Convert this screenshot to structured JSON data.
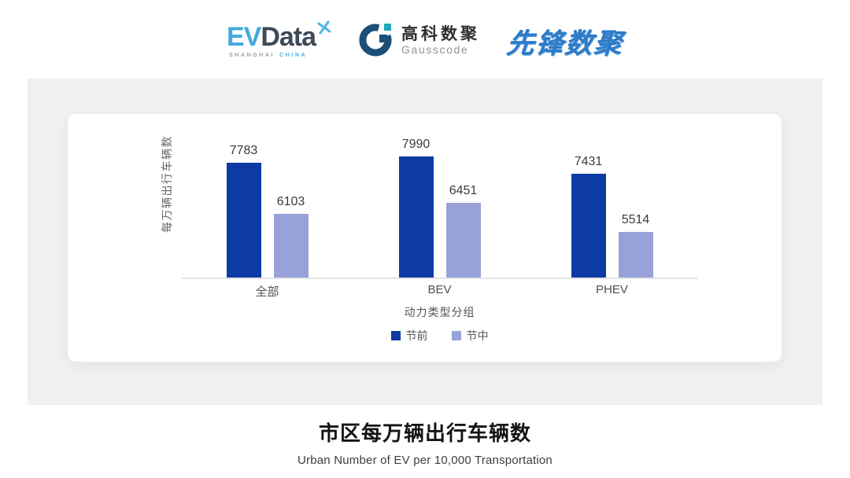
{
  "header": {
    "evdata": {
      "ev": "EV",
      "data": "Data",
      "sub_left": "SHANGHAI",
      "sub_right": "CHINA"
    },
    "gausscode": {
      "cn": "高科数聚",
      "en": "Gausscode"
    },
    "xianfeng": {
      "text": "先锋数聚"
    }
  },
  "chart_data": {
    "type": "bar",
    "categories": [
      "全部",
      "BEV",
      "PHEV"
    ],
    "series": [
      {
        "name": "节前",
        "color": "#0D3BA5",
        "values": [
          7783,
          7990,
          7431
        ]
      },
      {
        "name": "节中",
        "color": "#97A2D8",
        "values": [
          6103,
          6451,
          5514
        ]
      }
    ],
    "xlabel": "动力类型分组",
    "ylabel": "每万辆出行车辆数",
    "ylim": [
      4000,
      8200
    ],
    "grid": false,
    "legend_position": "bottom",
    "value_labels": true
  },
  "footer": {
    "title": "市区每万辆出行车辆数",
    "subtitle": "Urban Number of EV per 10,000 Transportation"
  },
  "colors": {
    "pre_holiday_bar": "#0D3BA5",
    "mid_holiday_bar": "#97A2D8",
    "panel_bg": "#F0F0F1",
    "evdata_blue": "#41A9DD",
    "evdata_dark": "#3D4A57",
    "gausscode_navy": "#1B4F77",
    "gausscode_teal": "#1FA8BE",
    "xianfeng_blue": "#2E7BC8"
  }
}
